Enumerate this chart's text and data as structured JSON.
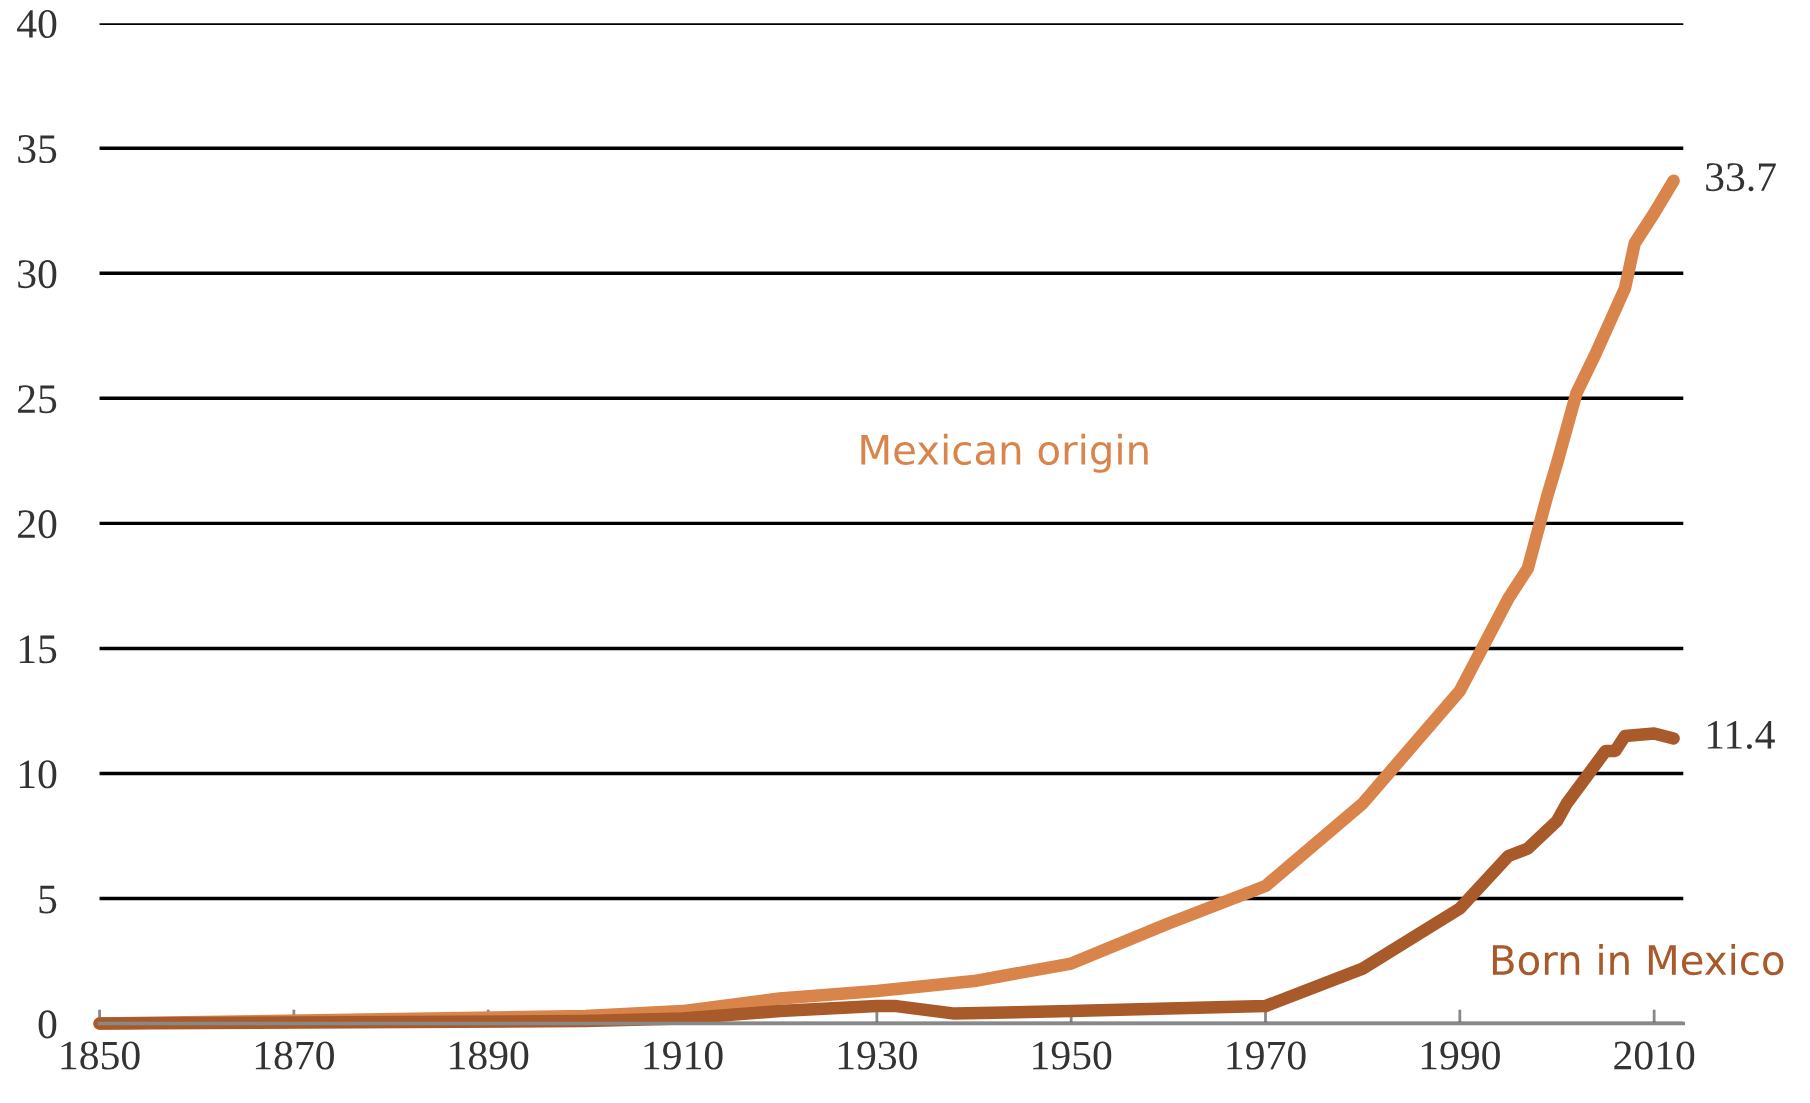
{
  "chart_data": {
    "type": "line",
    "xlim": [
      1850,
      2013
    ],
    "xticks": [
      1850,
      1870,
      1890,
      1910,
      1930,
      1950,
      1970,
      1990,
      2010
    ],
    "ylim": [
      0,
      40
    ],
    "yticks": [
      0,
      5,
      10,
      15,
      20,
      25,
      30,
      35,
      40
    ],
    "grid": "y",
    "legend": false,
    "line_style": "solid",
    "series": [
      {
        "name": "Mexican origin",
        "color": "#d9844a",
        "x": [
          1850,
          1900,
          1910,
          1920,
          1930,
          1940,
          1950,
          1960,
          1970,
          1980,
          1990,
          1995,
          1997,
          1999,
          2000,
          2002,
          2004,
          2007,
          2008,
          2010,
          2012
        ],
        "values": [
          0,
          0.3,
          0.5,
          1.0,
          1.3,
          1.7,
          2.4,
          4.0,
          5.5,
          8.8,
          13.3,
          17.0,
          18.2,
          21.1,
          22.4,
          25.2,
          26.8,
          29.4,
          31.2,
          32.4,
          33.7
        ]
      },
      {
        "name": "Born in Mexico",
        "color": "#a85a2a",
        "x": [
          1850,
          1900,
          1910,
          1920,
          1930,
          1932,
          1938,
          1950,
          1970,
          1980,
          1990,
          1995,
          1997,
          2000,
          2001,
          2005,
          2006,
          2007,
          2010,
          2012
        ],
        "values": [
          0,
          0.1,
          0.2,
          0.5,
          0.7,
          0.7,
          0.4,
          0.5,
          0.7,
          2.2,
          4.6,
          6.7,
          7.0,
          8.1,
          8.8,
          10.9,
          10.9,
          11.5,
          11.6,
          11.4
        ]
      }
    ],
    "annotations": [
      {
        "text": "33.7",
        "x": 2012,
        "y": 33.7
      },
      {
        "text": "11.4",
        "x": 2012,
        "y": 11.4
      }
    ]
  }
}
